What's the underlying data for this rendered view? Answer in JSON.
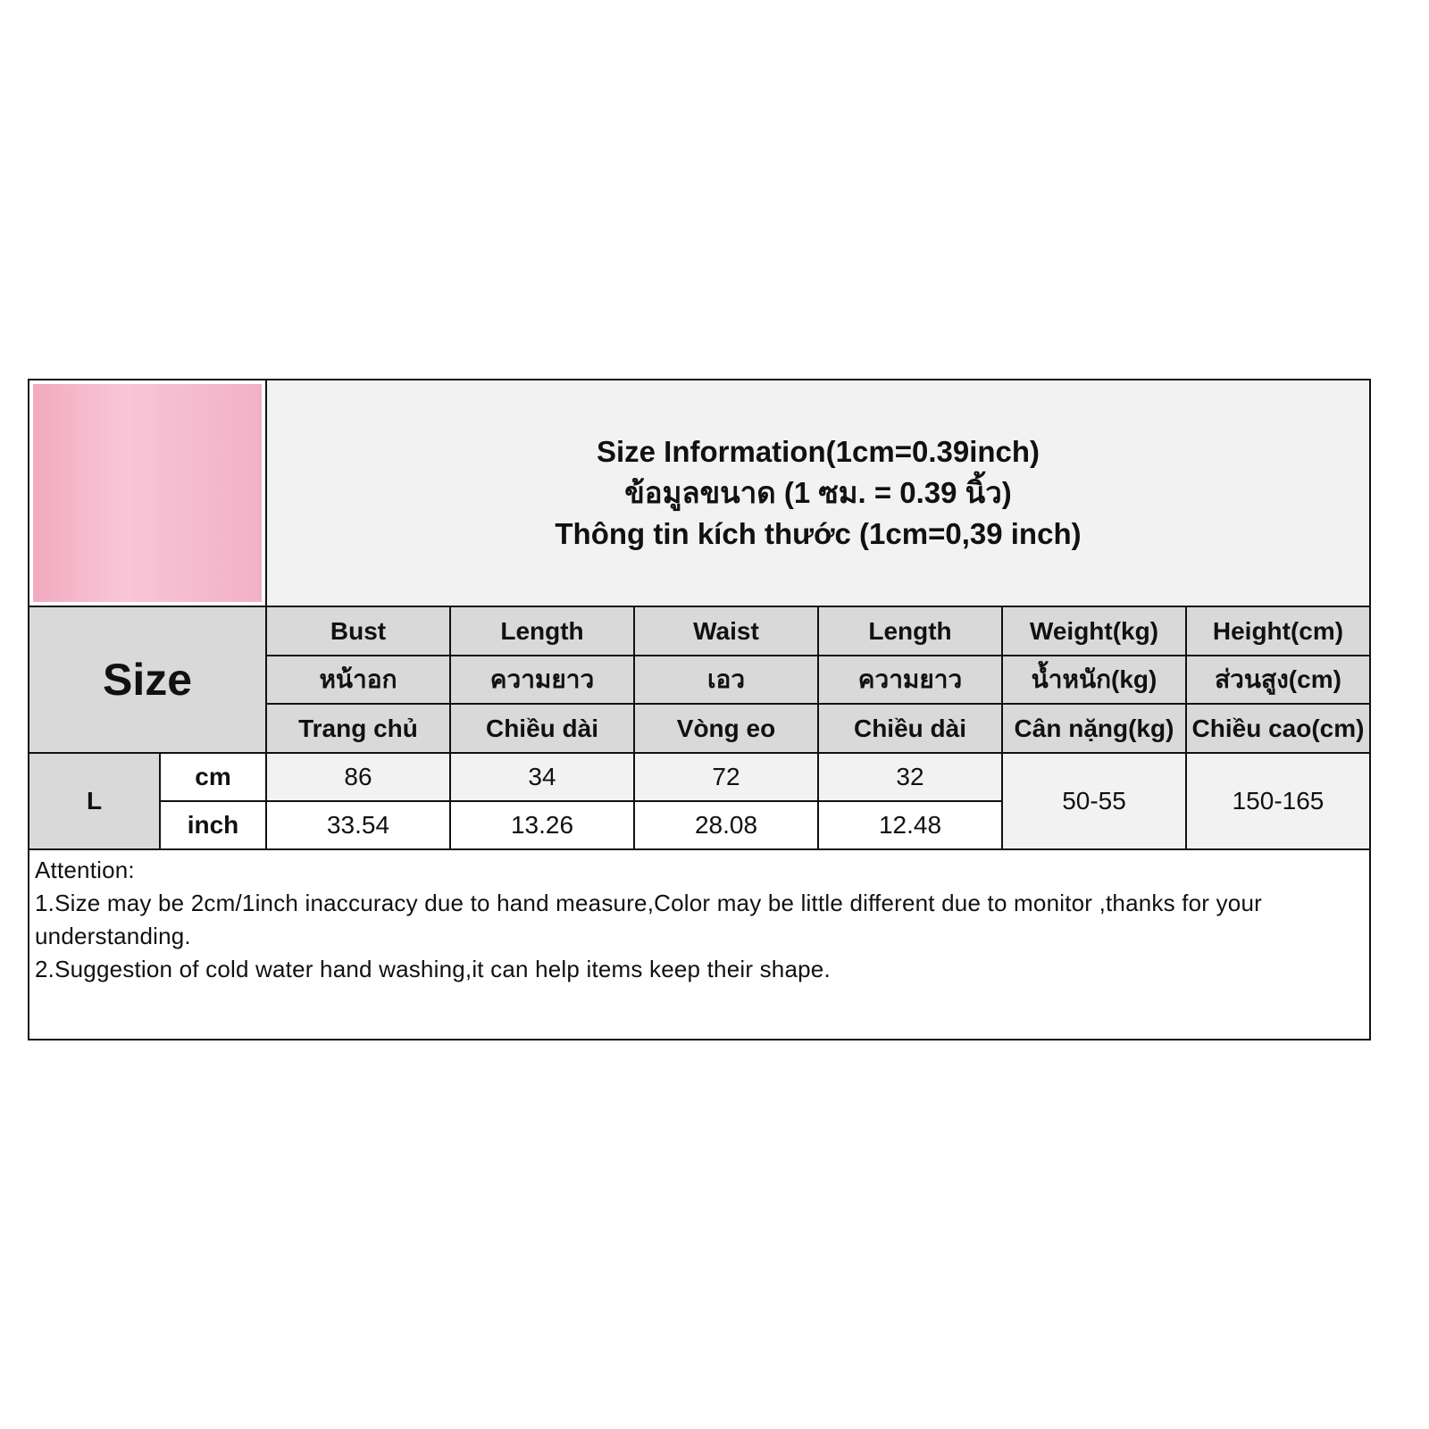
{
  "title": {
    "line1": "Size Information(1cm=0.39inch)",
    "line2": "ข้อมูลขนาด (1 ซม. = 0.39 นิ้ว)",
    "line3": "Thông tin kích thước (1cm=0,39 inch)"
  },
  "size_label": "Size",
  "headers": [
    {
      "en": "Bust",
      "th": "หน้าอก",
      "vi": "Trang chủ"
    },
    {
      "en": "Length",
      "th": "ความยาว",
      "vi": "Chiều dài"
    },
    {
      "en": "Waist",
      "th": "เอว",
      "vi": "Vòng eo"
    },
    {
      "en": "Length",
      "th": "ความยาว",
      "vi": "Chiều dài"
    },
    {
      "en": "Weight(kg)",
      "th": "น้ำหนัก(kg)",
      "vi": "Cân nặng(kg)"
    },
    {
      "en": "Height(cm)",
      "th": "ส่วนสูง(cm)",
      "vi": "Chiều cao(cm)"
    }
  ],
  "row": {
    "size": "L",
    "cm_label": "cm",
    "inch_label": "inch",
    "cm": [
      "86",
      "34",
      "72",
      "32"
    ],
    "inch": [
      "33.54",
      "13.26",
      "28.08",
      "12.48"
    ],
    "weight": "50-55",
    "height": "150-165"
  },
  "attention": {
    "heading": "Attention:",
    "note1": "1.Size may be 2cm/1inch inaccuracy due to hand measure,Color may be little different due to monitor ,thanks for your understanding.",
    "note2": "2.Suggestion of cold water hand washing,it can help items keep their shape."
  }
}
